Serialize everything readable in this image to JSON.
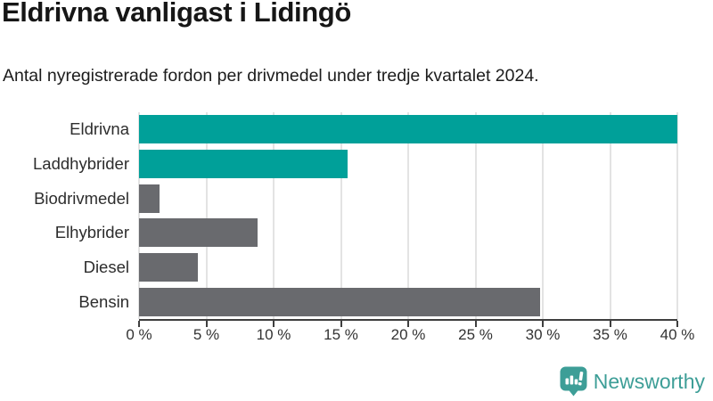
{
  "header": {
    "title": "Eldrivna vanligast i Lidingö",
    "subtitle": "Antal nyregistrerade fordon per drivmedel under tredje kvartalet 2024."
  },
  "chart_data": {
    "type": "bar",
    "orientation": "horizontal",
    "title": "Eldrivna vanligast i Lidingö",
    "subtitle": "Antal nyregistrerade fordon per drivmedel under tredje kvartalet 2024.",
    "categories": [
      "Eldrivna",
      "Laddhybrider",
      "Biodrivmedel",
      "Elhybrider",
      "Diesel",
      "Bensin"
    ],
    "values": [
      40.0,
      15.5,
      1.5,
      8.8,
      4.4,
      29.8
    ],
    "unit": "%",
    "xlim": [
      0,
      40
    ],
    "x_tick_step": 5,
    "x_tick_labels": [
      "0 %",
      "5 %",
      "10 %",
      "15 %",
      "20 %",
      "25 %",
      "30 %",
      "35 %",
      "40 %"
    ],
    "highlight_color": "#00a099",
    "default_color": "#696a6e",
    "bar_colors": [
      "#00a099",
      "#00a099",
      "#696a6e",
      "#696a6e",
      "#696a6e",
      "#696a6e"
    ],
    "gridline_color": "#e3e3e3",
    "axis_color": "#3f3f3f",
    "grid": "vertical",
    "legend": "none"
  },
  "footer": {
    "brand": "Newsworthy",
    "brand_color": "#3d9e97",
    "logo_icon": "newsworthy-speech-bubble-barchart-icon"
  }
}
